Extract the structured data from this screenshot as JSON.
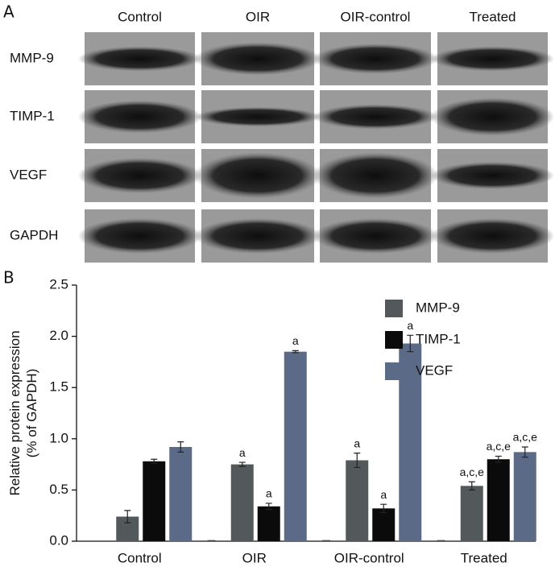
{
  "panel_a": {
    "label": "A",
    "columns": [
      "Control",
      "OIR",
      "OIR-control",
      "Treated"
    ],
    "rows": [
      "MMP-9",
      "TIMP-1",
      "VEGF",
      "GAPDH"
    ]
  },
  "chart_data": {
    "type": "bar",
    "panel_label": "B",
    "ylabel": [
      "Relative protein expression",
      "(% of GAPDH)"
    ],
    "categories": [
      "Control",
      "OIR",
      "OIR-control",
      "Treated"
    ],
    "series": [
      {
        "name": "MMP-9",
        "color": "#53595a",
        "values": [
          0.24,
          0.75,
          0.79,
          0.54
        ],
        "errors": [
          0.06,
          0.02,
          0.07,
          0.04
        ],
        "annotations": [
          null,
          "a",
          "a",
          "a,c,e"
        ]
      },
      {
        "name": "TIMP-1",
        "color": "#0b0b0b",
        "values": [
          0.78,
          0.34,
          0.32,
          0.8
        ],
        "errors": [
          0.02,
          0.03,
          0.04,
          0.03
        ],
        "annotations": [
          null,
          "a",
          "a",
          "a,c,e"
        ]
      },
      {
        "name": "VEGF",
        "color": "#5b6a87",
        "values": [
          0.92,
          1.85,
          1.93,
          0.87
        ],
        "errors": [
          0.05,
          0.01,
          0.08,
          0.05
        ],
        "annotations": [
          null,
          "a",
          "a",
          "a,c,e"
        ]
      }
    ],
    "ylim": [
      0,
      2.5
    ],
    "yticks": [
      {
        "value": 0,
        "label": "0.0"
      },
      0.5,
      {
        "value": 1,
        "label": "1.0"
      },
      1.5,
      {
        "value": 2,
        "label": "2.0"
      },
      2.5
    ],
    "legend": "upper right"
  }
}
